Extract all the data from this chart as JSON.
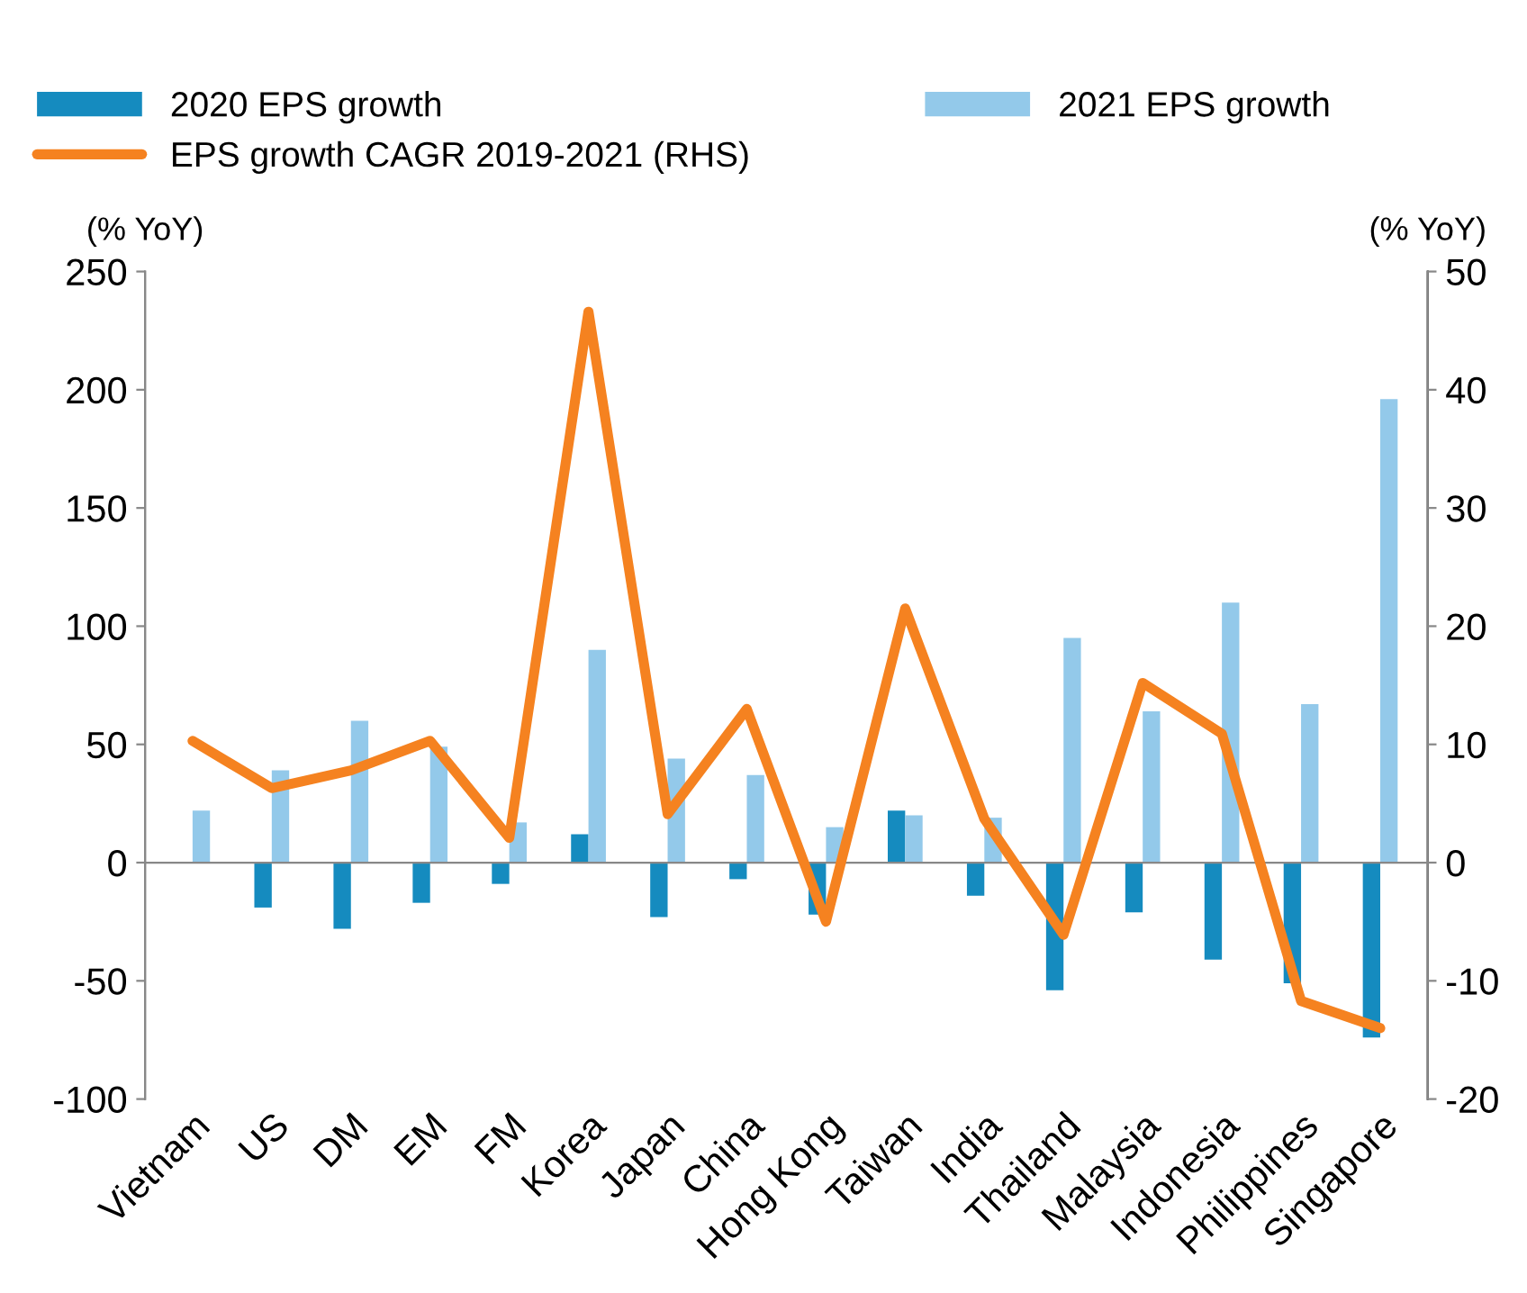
{
  "chart_data": {
    "type": "bar",
    "ylabel": "(% YoY)",
    "y2label": "(% YoY)",
    "categories": [
      "Vietnam",
      "US",
      "DM",
      "EM",
      "FM",
      "Korea",
      "Japan",
      "China",
      "Hong Kong",
      "Taiwan",
      "India",
      "Thailand",
      "Malaysia",
      "Indonesia",
      "Philippines",
      "Singapore"
    ],
    "series": [
      {
        "name": "2020 EPS growth",
        "color": "#158bbf",
        "values": [
          null,
          -19,
          -28,
          -17,
          -9,
          12,
          -23,
          -7,
          -22,
          22,
          -14,
          -54,
          -21,
          -41,
          -51,
          -74
        ]
      },
      {
        "name": "2021 EPS growth",
        "color": "#93c9ea",
        "values": [
          22,
          39,
          60,
          49,
          17,
          90,
          44,
          37,
          15,
          20,
          19,
          95,
          64,
          110,
          67,
          196
        ]
      },
      {
        "name": "EPS growth CAGR 2019-2021 (RHS)",
        "color": "#f58220",
        "type": "line",
        "axis": "y2",
        "values": [
          10.3,
          6.3,
          7.8,
          10.3,
          2.1,
          46.6,
          4.1,
          13,
          -5,
          21.5,
          3.7,
          -6.1,
          15.2,
          10.9,
          -11.7,
          -14
        ]
      }
    ],
    "ylim": [
      -100,
      250
    ],
    "yticks": [
      -100,
      -50,
      0,
      50,
      100,
      150,
      200,
      250
    ],
    "y2lim": [
      -20,
      50
    ],
    "y2ticks": [
      -20,
      -10,
      0,
      10,
      20,
      30,
      40,
      50
    ],
    "legend": "top"
  }
}
